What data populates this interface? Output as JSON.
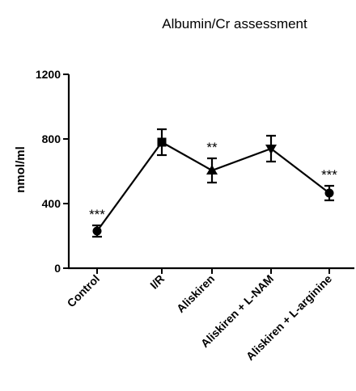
{
  "chart_data": {
    "type": "line",
    "title": "Albumin/Cr assessment",
    "ylabel": "nmol/ml",
    "xlabel": "",
    "ylim": [
      0,
      1200
    ],
    "yticks": [
      0,
      400,
      800,
      1200
    ],
    "ytick_labels": [
      "0",
      "400",
      "800",
      "1200"
    ],
    "categories": [
      "Control",
      "I/R",
      "Aliskiren",
      "Aliskiren + L-NAM",
      "Aliskiren + L-arginine"
    ],
    "values": [
      230,
      780,
      605,
      740,
      465
    ],
    "errors": [
      35,
      80,
      75,
      80,
      45
    ],
    "markers": [
      "circle",
      "square",
      "triangle",
      "inverted-triangle",
      "circle"
    ],
    "annotations": [
      "***",
      "",
      "**",
      "",
      "***"
    ],
    "color": "#000000",
    "grid": false
  }
}
